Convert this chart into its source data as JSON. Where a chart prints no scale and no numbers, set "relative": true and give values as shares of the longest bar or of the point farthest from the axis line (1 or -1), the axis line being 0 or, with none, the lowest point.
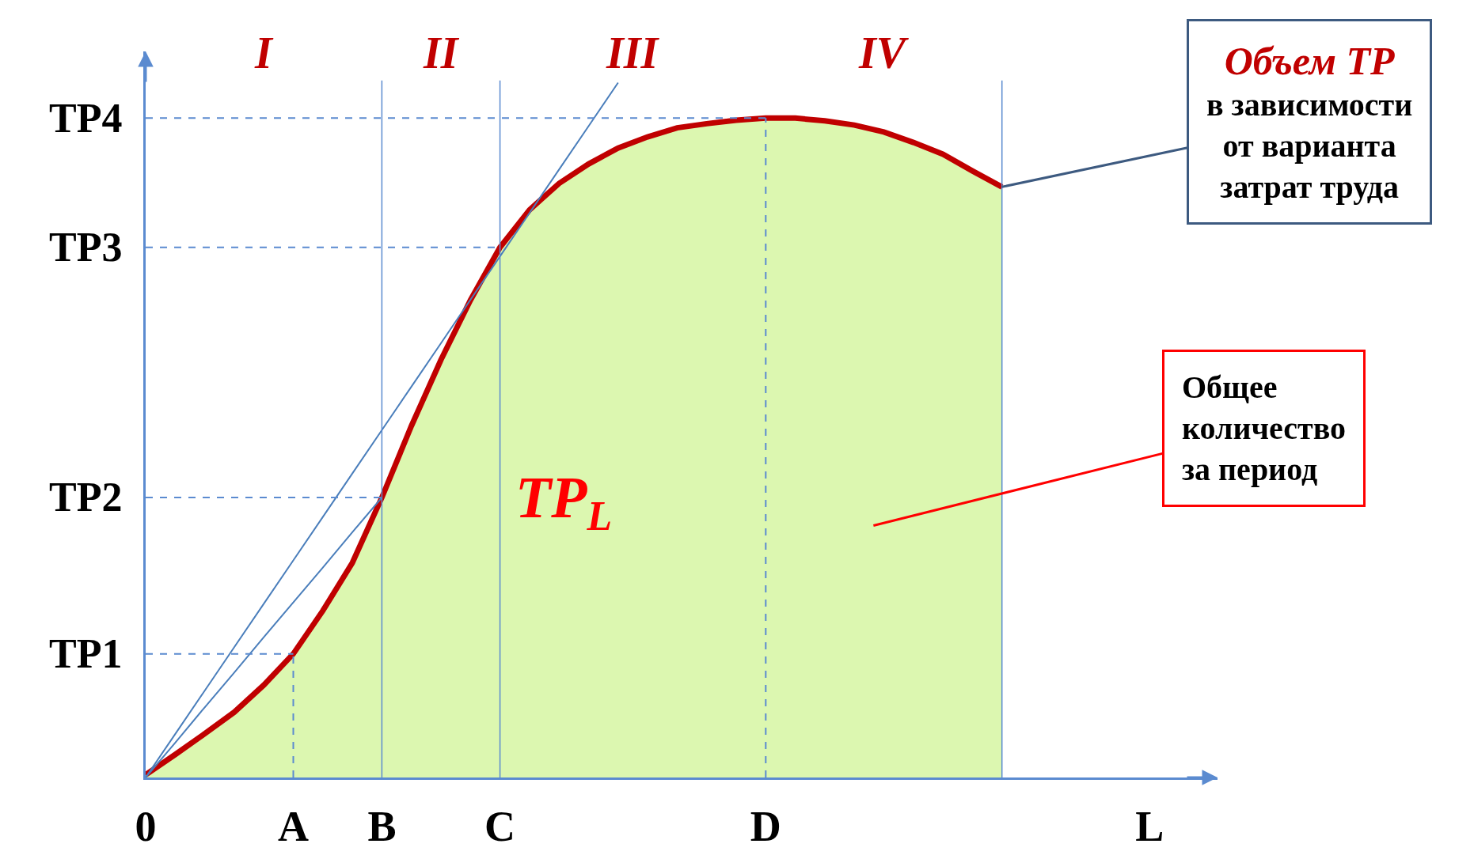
{
  "chart_data": {
    "type": "area",
    "relative": true,
    "categories": [
      "0",
      null,
      null,
      null,
      null,
      "A",
      null,
      null,
      "B",
      null,
      null,
      null,
      "C",
      null,
      null,
      null,
      null,
      null,
      null,
      null,
      null,
      "D",
      null,
      null,
      null,
      null,
      null,
      null,
      null,
      null,
      null,
      null,
      null,
      null,
      "L"
    ],
    "series": [
      {
        "color": "#dcf7b0",
        "values": [
          0.004,
          0.033,
          0.063,
          0.094,
          0.133,
          0.178,
          0.24,
          0.309,
          0.403,
          0.506,
          0.601,
          0.687,
          0.763,
          0.817,
          0.855,
          0.883,
          0.906,
          0.922,
          0.935,
          0.941,
          0.946,
          0.949,
          0.949,
          0.945,
          0.939,
          0.929,
          0.914,
          0.897,
          0.873,
          0.85,
          null,
          null,
          null,
          null,
          null
        ]
      },
      {
        "type": "line",
        "color": "#c00000",
        "values": [
          0.004,
          0.033,
          0.063,
          0.094,
          0.133,
          0.178,
          0.24,
          0.309,
          0.403,
          0.506,
          0.601,
          0.687,
          0.763,
          0.817,
          0.855,
          0.883,
          0.906,
          0.922,
          0.935,
          0.941,
          0.946,
          0.949,
          0.949,
          0.945,
          0.939,
          0.929,
          0.914,
          0.897,
          0.873,
          0.85,
          null,
          null,
          null,
          null,
          null
        ]
      },
      {
        "type": "line",
        "color": "#4a7ebb",
        "values": [
          0,
          0.0625,
          0.125,
          0.1875,
          0.25,
          0.3125,
          0.375,
          0.4375,
          0.5,
          0.5625,
          0.625,
          0.6875,
          0.75,
          0.8125,
          0.875,
          0.9375,
          1,
          null,
          null,
          null,
          null,
          null,
          null,
          null,
          null,
          null,
          null,
          null,
          null,
          null,
          null,
          null,
          null,
          null,
          null
        ]
      },
      {
        "type": "line",
        "color": "#4a7ebb",
        "values": [
          0,
          0.05,
          0.101,
          0.151,
          0.202,
          0.252,
          0.302,
          0.353,
          0.403,
          null,
          null,
          null,
          null,
          null,
          null,
          null,
          null,
          null,
          null,
          null,
          null,
          null,
          null,
          null,
          null,
          null,
          null,
          null,
          null,
          null,
          null,
          null,
          null,
          null,
          null
        ]
      }
    ],
    "ref_lines": [
      {
        "axis": "x",
        "value": "A",
        "line_style": "dashed"
      },
      {
        "axis": "x",
        "value": "B",
        "line_style": "solid"
      },
      {
        "axis": "x",
        "value": "C",
        "line_style": "solid"
      },
      {
        "axis": "x",
        "value": "D",
        "line_style": "dashed"
      }
    ],
    "annotations": [
      "TP$_{L}$",
      "I",
      "II",
      "III",
      "IV",
      "Объем ТР\nв зависимости\nот варианта\nзатрат труда",
      "Общее\nколичество\nза период",
      "TP1",
      "TP2",
      "TP3",
      "TP4"
    ]
  }
}
